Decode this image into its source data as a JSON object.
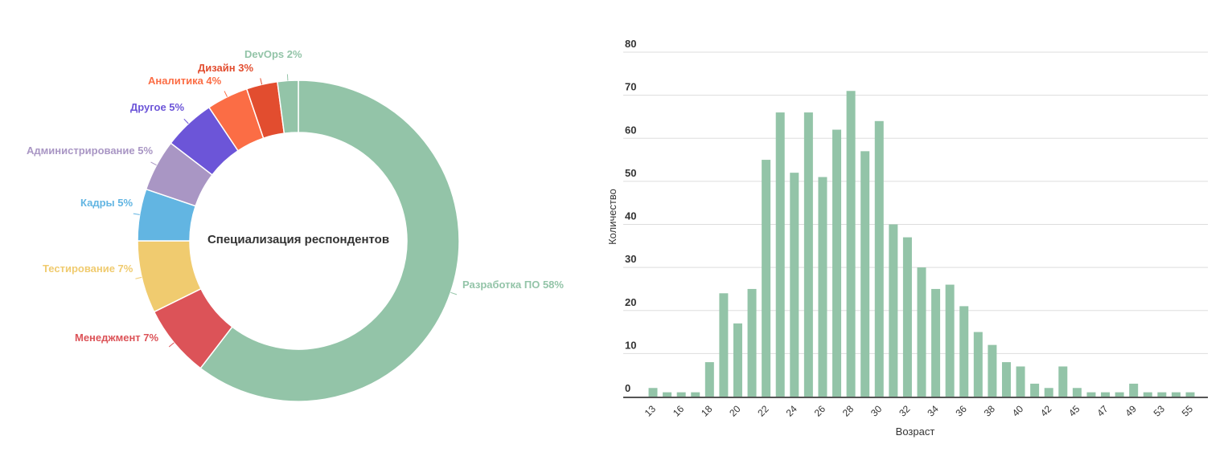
{
  "chart_data": [
    {
      "type": "pie",
      "title": "Специализация респондентов",
      "slices": [
        {
          "label": "Разработка ПО",
          "value": 58,
          "text": "Разработка ПО 58%",
          "color": "#93c4a8"
        },
        {
          "label": "Менеджмент",
          "value": 7,
          "text": "Менеджмент 7%",
          "color": "#dc5358"
        },
        {
          "label": "Тестирование",
          "value": 7,
          "text": "Тестирование 7%",
          "color": "#f0cb6f"
        },
        {
          "label": "Кадры",
          "value": 5,
          "text": "Кадры 5%",
          "color": "#62b5e2"
        },
        {
          "label": "Администрирование",
          "value": 5,
          "text": "Администрирование 5%",
          "color": "#a996c4"
        },
        {
          "label": "Другое",
          "value": 5,
          "text": "Другое 5%",
          "color": "#6c55d8"
        },
        {
          "label": "Аналитика",
          "value": 4,
          "text": "Аналитика 4%",
          "color": "#fb6d45"
        },
        {
          "label": "Дизайн",
          "value": 3,
          "text": "Дизайн 3%",
          "color": "#e24d2f"
        },
        {
          "label": "DevOps",
          "value": 2,
          "text": "DevOps 2%",
          "color": "#93c4a8"
        }
      ]
    },
    {
      "type": "bar",
      "xlabel": "Возраст",
      "ylabel": "Количество",
      "ylim": [
        0,
        80
      ],
      "yticks": [
        "0",
        "10",
        "20",
        "30",
        "40",
        "50",
        "60",
        "70",
        "80"
      ],
      "color": "#93c4a8",
      "categories": [
        "13",
        "15",
        "16",
        "17",
        "18",
        "19",
        "20",
        "21",
        "22",
        "23",
        "24",
        "25",
        "26",
        "27",
        "28",
        "29",
        "30",
        "31",
        "32",
        "33",
        "34",
        "35",
        "36",
        "37",
        "38",
        "39",
        "40",
        "41",
        "42",
        "43",
        "45",
        "46",
        "47",
        "48",
        "49",
        "51",
        "53",
        "54",
        "55"
      ],
      "values": [
        2,
        1,
        1,
        1,
        8,
        24,
        17,
        25,
        55,
        66,
        52,
        66,
        51,
        62,
        71,
        57,
        64,
        40,
        37,
        30,
        25,
        26,
        21,
        15,
        12,
        8,
        7,
        3,
        2,
        7,
        2,
        1,
        1,
        1,
        3,
        1,
        1,
        1,
        1
      ],
      "grid": true
    }
  ]
}
